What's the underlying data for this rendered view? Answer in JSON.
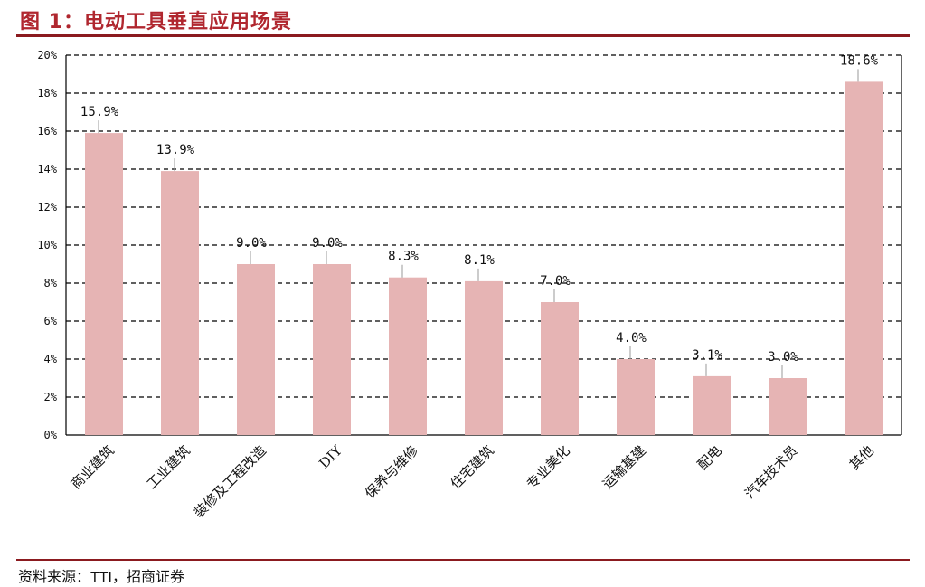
{
  "figure": {
    "title": "图 1：电动工具垂直应用场景",
    "source": "资料来源：TTI，招商证券"
  },
  "chart_data": {
    "type": "bar",
    "title": "",
    "xlabel": "",
    "ylabel": "",
    "ylim": [
      0,
      20
    ],
    "yticks": [
      "0%",
      "2%",
      "4%",
      "6%",
      "8%",
      "10%",
      "12%",
      "14%",
      "16%",
      "18%",
      "20%"
    ],
    "grid": true,
    "bar_color": "#e6b4b4",
    "categories": [
      "商业建筑",
      "工业建筑",
      "装修及工程改造",
      "DIY",
      "保养与维修",
      "住宅建筑",
      "专业美化",
      "运输基建",
      "配电",
      "汽车技术员",
      "其他"
    ],
    "values": [
      15.9,
      13.9,
      9.0,
      9.0,
      8.3,
      8.1,
      7.0,
      4.0,
      3.1,
      3.0,
      18.6
    ],
    "data_labels": [
      "15.9%",
      "13.9%",
      "9.0%",
      "9.0%",
      "8.3%",
      "8.1%",
      "7.0%",
      "4.0%",
      "3.1%",
      "3.0%",
      "18.6%"
    ]
  }
}
